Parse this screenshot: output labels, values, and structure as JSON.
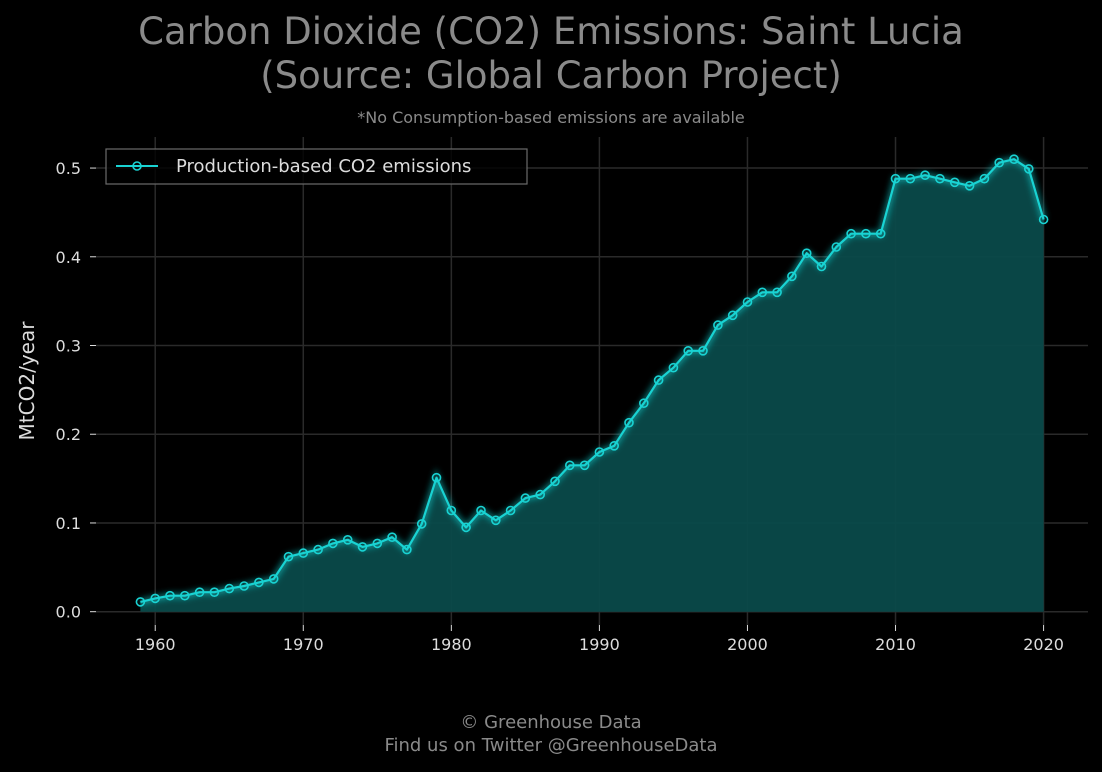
{
  "header": {
    "title_line1": "Carbon Dioxide (CO2) Emissions: Saint Lucia",
    "title_line2": "(Source: Global Carbon Project)",
    "subtitle": "*No Consumption-based emissions are available"
  },
  "footer": {
    "line1": "© Greenhouse Data",
    "line2": "Find us on Twitter @GreenhouseData"
  },
  "colors": {
    "background": "#000000",
    "line": "#19d3d3",
    "fill": "#0a4a4a",
    "grid": "#2a2a2a",
    "text": "#dddddd",
    "muted": "#8a8a8a"
  },
  "chart_data": {
    "type": "area",
    "title": "Carbon Dioxide (CO2) Emissions: Saint Lucia (Source: Global Carbon Project)",
    "subtitle": "*No Consumption-based emissions are available",
    "xlabel": "",
    "ylabel": "MtCO2/year",
    "xlim": [
      1956,
      2023
    ],
    "ylim": [
      -0.015,
      0.535
    ],
    "xticks": [
      1960,
      1970,
      1980,
      1990,
      2000,
      2010,
      2020
    ],
    "yticks": [
      0.0,
      0.1,
      0.2,
      0.3,
      0.4,
      0.5
    ],
    "ytick_labels": [
      "0.0",
      "0.1",
      "0.2",
      "0.3",
      "0.4",
      "0.5"
    ],
    "grid": true,
    "legend": "top-left",
    "series": [
      {
        "name": "Production-based CO2 emissions",
        "x": [
          1959,
          1960,
          1961,
          1962,
          1963,
          1964,
          1965,
          1966,
          1967,
          1968,
          1969,
          1970,
          1971,
          1972,
          1973,
          1974,
          1975,
          1976,
          1977,
          1978,
          1979,
          1980,
          1981,
          1982,
          1983,
          1984,
          1985,
          1986,
          1987,
          1988,
          1989,
          1990,
          1991,
          1992,
          1993,
          1994,
          1995,
          1996,
          1997,
          1998,
          1999,
          2000,
          2001,
          2002,
          2003,
          2004,
          2005,
          2006,
          2007,
          2008,
          2009,
          2010,
          2011,
          2012,
          2013,
          2014,
          2015,
          2016,
          2017,
          2018,
          2019,
          2020
        ],
        "values": [
          0.011,
          0.015,
          0.018,
          0.018,
          0.022,
          0.022,
          0.026,
          0.029,
          0.033,
          0.037,
          0.062,
          0.066,
          0.07,
          0.077,
          0.081,
          0.073,
          0.077,
          0.084,
          0.07,
          0.099,
          0.151,
          0.114,
          0.095,
          0.114,
          0.103,
          0.114,
          0.128,
          0.132,
          0.147,
          0.165,
          0.165,
          0.18,
          0.187,
          0.213,
          0.235,
          0.261,
          0.275,
          0.294,
          0.294,
          0.323,
          0.334,
          0.349,
          0.36,
          0.36,
          0.378,
          0.404,
          0.389,
          0.411,
          0.426,
          0.426,
          0.426,
          0.488,
          0.488,
          0.492,
          0.488,
          0.484,
          0.48,
          0.488,
          0.506,
          0.51,
          0.499,
          0.442
        ]
      }
    ]
  }
}
